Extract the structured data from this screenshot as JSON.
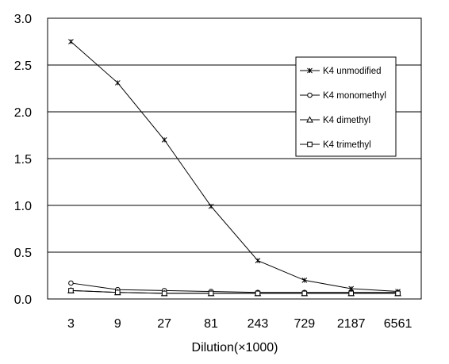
{
  "chart_data": {
    "type": "line",
    "categories": [
      "3",
      "9",
      "27",
      "81",
      "243",
      "729",
      "2187",
      "6561"
    ],
    "xlabel": "Dilution(×1000)",
    "ylabel": "",
    "ylim": [
      0,
      3.0
    ],
    "yticks": [
      "0.0",
      "0.5",
      "1.0",
      "1.5",
      "2.0",
      "2.5",
      "3.0"
    ],
    "grid": "horizontal",
    "legend_position": "top-right",
    "series": [
      {
        "name": "K4 unmodified",
        "marker": "asterisk",
        "values": [
          2.75,
          2.31,
          1.7,
          0.99,
          0.41,
          0.2,
          0.11,
          0.08
        ]
      },
      {
        "name": "K4 monomethyl",
        "marker": "circle",
        "values": [
          0.17,
          0.1,
          0.09,
          0.08,
          0.07,
          0.07,
          0.07,
          0.07
        ]
      },
      {
        "name": "K4 dimethyl",
        "marker": "triangle",
        "values": [
          0.09,
          0.07,
          0.06,
          0.06,
          0.06,
          0.06,
          0.06,
          0.06
        ]
      },
      {
        "name": "K4 trimethyl",
        "marker": "square",
        "values": [
          0.09,
          0.07,
          0.06,
          0.06,
          0.06,
          0.06,
          0.06,
          0.06
        ]
      }
    ],
    "colors": {
      "line": "#000000",
      "grid": "#000000",
      "background": "#ffffff"
    }
  }
}
